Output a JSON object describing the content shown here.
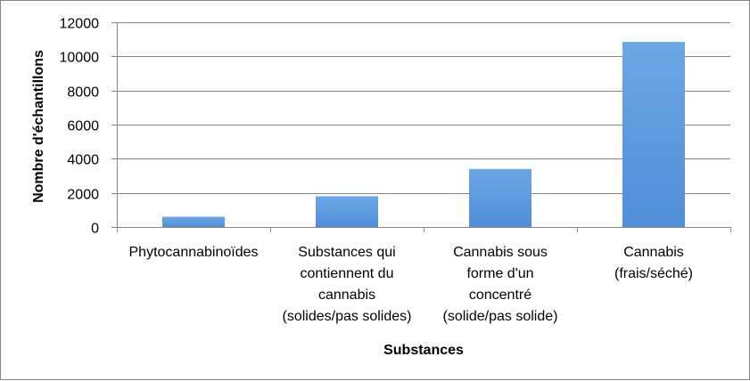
{
  "chart_data": {
    "type": "bar",
    "title": "",
    "xlabel": "Substances",
    "ylabel": "Nombre d'échantillons",
    "categories": [
      [
        "Phytocannabinoïdes"
      ],
      [
        "Substances qui",
        "contiennent du",
        "cannabis",
        "(solides/pas solides)"
      ],
      [
        "Cannabis sous",
        "forme d'un",
        "concentré",
        "(solide/pas solide)"
      ],
      [
        "Cannabis",
        "(frais/séché)"
      ]
    ],
    "values": [
      600,
      1800,
      3400,
      10850
    ],
    "ylim": [
      0,
      12000
    ],
    "yticks": [
      0,
      2000,
      4000,
      6000,
      8000,
      10000,
      12000
    ],
    "grid": true,
    "legend": "none",
    "colors": {
      "bar": "#4f8ed8",
      "bar_light": "#6ea6e6",
      "grid": "#868686",
      "axis": "#868686"
    }
  }
}
